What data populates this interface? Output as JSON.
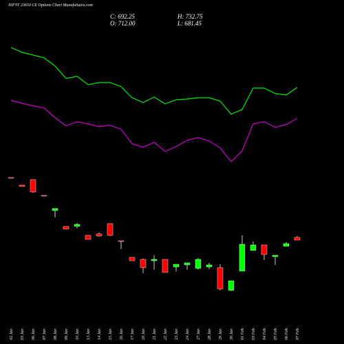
{
  "chart_data": {
    "type": "candlestick",
    "title": "NIFTY 23650 CE Options Chart MunafaSutra.com",
    "stats": [
      "C: 692.25",
      "H: 732.75",
      "O: 712.00",
      "L: 681.45"
    ],
    "categories": [
      "02 Jan",
      "03 Jan",
      "06 Jan",
      "07 Jan",
      "08 Jan",
      "09 Jan",
      "10 Jan",
      "13 Jan",
      "14 Jan",
      "15 Jan",
      "16 Jan",
      "17 Jan",
      "20 Jan",
      "21 Jan",
      "22 Jan",
      "23 Jan",
      "24 Jan",
      "27 Jan",
      "28 Jan",
      "29 Jan",
      "30 Jan",
      "01 Feb",
      "03 Feb",
      "04 Feb",
      "05 Feb",
      "06 Feb",
      "07 Feb"
    ],
    "open": [
      242,
      231,
      239,
      216,
      194,
      171,
      171,
      158,
      160,
      175,
      150,
      126,
      123,
      121,
      123,
      112,
      115,
      110,
      112,
      111,
      78,
      106,
      136,
      144,
      127,
      142,
      155
    ],
    "high": [
      242,
      231,
      239,
      216,
      197,
      171,
      176,
      158,
      162,
      175,
      150,
      126,
      124,
      129,
      123,
      116,
      118,
      125,
      118,
      116,
      92,
      158,
      149,
      144,
      129,
      148,
      157
    ],
    "low": [
      241,
      229,
      220,
      215,
      184,
      167,
      168,
      152,
      156,
      157,
      138,
      121,
      103,
      108,
      104,
      105,
      108,
      108,
      109,
      78,
      77,
      106,
      136,
      122,
      115,
      142,
      151
    ],
    "close": [
      241,
      229,
      221,
      215,
      197,
      167,
      174,
      152,
      157,
      158,
      149,
      121,
      111,
      123,
      104,
      116,
      118,
      123,
      115,
      80,
      92,
      145,
      144,
      130,
      129,
      146,
      151
    ],
    "up_color": "#00ff00",
    "down_color": "#ff0000",
    "ylim": [
      0,
      500
    ],
    "lines": [
      {
        "color": "#00ee00",
        "values": [
          431,
          424,
          420,
          416,
          404,
          386,
          389,
          377,
          380,
          380,
          374,
          358,
          351,
          359,
          349,
          355,
          356,
          358,
          358,
          353,
          334,
          341,
          372,
          372,
          364,
          362,
          373
        ]
      },
      {
        "color": "#cc00cc",
        "values": [
          354,
          350,
          346,
          343,
          329,
          317,
          323,
          320,
          316,
          318,
          312,
          291,
          286,
          293,
          280,
          287,
          296,
          300,
          295,
          285,
          265,
          281,
          320,
          323,
          315,
          319,
          328
        ]
      }
    ]
  }
}
